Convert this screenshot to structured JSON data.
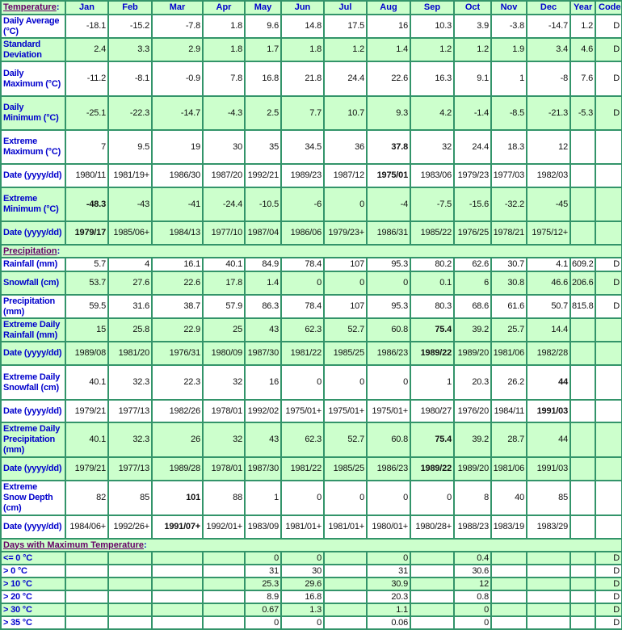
{
  "colors": {
    "label": "#0000cc",
    "section_link": "#660066",
    "row_alt": "#ccffcc",
    "border": "#33946a"
  },
  "columns": [
    "Jan",
    "Feb",
    "Mar",
    "Apr",
    "May",
    "Jun",
    "Jul",
    "Aug",
    "Sep",
    "Oct",
    "Nov",
    "Dec",
    "Year",
    "Code"
  ],
  "sections": [
    {
      "title": "Temperature",
      "is_header": true,
      "rows": [
        {
          "label": "Daily Average (°C)",
          "bg": "w",
          "h": 29,
          "values": [
            "-18.1",
            "-15.2",
            "-7.8",
            "1.8",
            "9.6",
            "14.8",
            "17.5",
            "16",
            "10.3",
            "3.9",
            "-3.8",
            "-14.7",
            "1.2",
            "D"
          ]
        },
        {
          "label": "Standard Deviation",
          "bg": "g",
          "h": 29,
          "values": [
            "2.4",
            "3.3",
            "2.9",
            "1.8",
            "1.7",
            "1.8",
            "1.2",
            "1.4",
            "1.2",
            "1.2",
            "1.9",
            "3.4",
            "4.6",
            "D"
          ]
        },
        {
          "label": "Daily Maximum (°C)",
          "bg": "w",
          "h": 43,
          "values": [
            "-11.2",
            "-8.1",
            "-0.9",
            "7.8",
            "16.8",
            "21.8",
            "24.4",
            "22.6",
            "16.3",
            "9.1",
            "1",
            "-8",
            "7.6",
            "D"
          ]
        },
        {
          "label": "Daily Minimum (°C)",
          "bg": "g",
          "h": 42,
          "values": [
            "-25.1",
            "-22.3",
            "-14.7",
            "-4.3",
            "2.5",
            "7.7",
            "10.7",
            "9.3",
            "4.2",
            "-1.4",
            "-8.5",
            "-21.3",
            "-5.3",
            "D"
          ]
        },
        {
          "label": "Extreme Maximum (°C)",
          "bg": "w",
          "h": 42,
          "values": [
            "7",
            "9.5",
            "19",
            "30",
            "35",
            "34.5",
            "36",
            "37.8",
            "32",
            "24.4",
            "18.3",
            "12",
            "",
            ""
          ],
          "bold": [
            7
          ]
        },
        {
          "label": "Date (yyyy/dd)",
          "bg": "w",
          "h": 29,
          "values": [
            "1980/11",
            "1981/19+",
            "1986/30",
            "1987/20",
            "1992/21",
            "1989/23",
            "1987/12",
            "1975/01",
            "1983/06",
            "1979/23",
            "1977/03",
            "1982/03",
            "",
            ""
          ],
          "bold": [
            7
          ]
        },
        {
          "label": "Extreme Minimum (°C)",
          "bg": "g",
          "h": 42,
          "values": [
            "-48.3",
            "-43",
            "-41",
            "-24.4",
            "-10.5",
            "-6",
            "0",
            "-4",
            "-7.5",
            "-15.6",
            "-32.2",
            "-45",
            "",
            ""
          ],
          "bold": [
            0
          ]
        },
        {
          "label": "Date (yyyy/dd)",
          "bg": "g",
          "h": 29,
          "values": [
            "1979/17",
            "1985/06+",
            "1984/13",
            "1977/10",
            "1987/04",
            "1986/06",
            "1979/23+",
            "1986/31",
            "1985/22",
            "1976/25",
            "1978/21",
            "1975/12+",
            "",
            ""
          ],
          "bold": [
            0
          ]
        }
      ]
    },
    {
      "title": "Precipitation",
      "rows": [
        {
          "label": "Rainfall (mm)",
          "bg": "w",
          "h": 17,
          "values": [
            "5.7",
            "4",
            "16.1",
            "40.1",
            "84.9",
            "78.4",
            "107",
            "95.3",
            "80.2",
            "62.6",
            "30.7",
            "4.1",
            "609.2",
            "D"
          ]
        },
        {
          "label": "Snowfall (cm)",
          "bg": "g",
          "h": 29,
          "values": [
            "53.7",
            "27.6",
            "22.6",
            "17.8",
            "1.4",
            "0",
            "0",
            "0",
            "0.1",
            "6",
            "30.8",
            "46.6",
            "206.6",
            "D"
          ]
        },
        {
          "label": "Precipitation (mm)",
          "bg": "w",
          "h": 29,
          "values": [
            "59.5",
            "31.6",
            "38.7",
            "57.9",
            "86.3",
            "78.4",
            "107",
            "95.3",
            "80.3",
            "68.6",
            "61.6",
            "50.7",
            "815.8",
            "D"
          ]
        },
        {
          "label": "Extreme Daily Rainfall (mm)",
          "bg": "g",
          "h": 29,
          "values": [
            "15",
            "25.8",
            "22.9",
            "25",
            "43",
            "62.3",
            "52.7",
            "60.8",
            "75.4",
            "39.2",
            "25.7",
            "14.4",
            "",
            ""
          ],
          "bold": [
            8
          ]
        },
        {
          "label": "Date (yyyy/dd)",
          "bg": "g",
          "h": 29,
          "values": [
            "1989/08",
            "1981/20",
            "1976/31",
            "1980/09",
            "1987/30",
            "1981/22",
            "1985/25",
            "1986/23",
            "1989/22",
            "1989/20",
            "1981/06",
            "1982/28",
            "",
            ""
          ],
          "bold": [
            8
          ]
        },
        {
          "label": "Extreme Daily Snowfall (cm)",
          "bg": "w",
          "h": 43,
          "values": [
            "40.1",
            "32.3",
            "22.3",
            "32",
            "16",
            "0",
            "0",
            "0",
            "1",
            "20.3",
            "26.2",
            "44",
            "",
            ""
          ],
          "bold": [
            11
          ]
        },
        {
          "label": "Date (yyyy/dd)",
          "bg": "w",
          "h": 28,
          "values": [
            "1979/21",
            "1977/13",
            "1982/26",
            "1978/01",
            "1992/02",
            "1975/01+",
            "1975/01+",
            "1975/01+",
            "1980/27",
            "1976/20",
            "1984/11",
            "1991/03",
            "",
            ""
          ],
          "bold": [
            11
          ]
        },
        {
          "label": "Extreme Daily Precipitation (mm)",
          "bg": "g",
          "h": 43,
          "values": [
            "40.1",
            "32.3",
            "26",
            "32",
            "43",
            "62.3",
            "52.7",
            "60.8",
            "75.4",
            "39.2",
            "28.7",
            "44",
            "",
            ""
          ],
          "bold": [
            8
          ]
        },
        {
          "label": "Date (yyyy/dd)",
          "bg": "g",
          "h": 29,
          "values": [
            "1979/21",
            "1977/13",
            "1989/28",
            "1978/01",
            "1987/30",
            "1981/22",
            "1985/25",
            "1986/23",
            "1989/22",
            "1989/20",
            "1981/06",
            "1991/03",
            "",
            ""
          ],
          "bold": [
            8
          ]
        },
        {
          "label": "Extreme Snow Depth (cm)",
          "bg": "w",
          "h": 43,
          "values": [
            "82",
            "85",
            "101",
            "88",
            "1",
            "0",
            "0",
            "0",
            "0",
            "8",
            "40",
            "85",
            "",
            ""
          ],
          "bold": [
            2
          ]
        },
        {
          "label": "Date (yyyy/dd)",
          "bg": "w",
          "h": 29,
          "values": [
            "1984/06+",
            "1992/26+",
            "1991/07+",
            "1992/01+",
            "1983/09",
            "1981/01+",
            "1981/01+",
            "1980/01+",
            "1980/28+",
            "1988/23",
            "1983/19",
            "1983/29",
            "",
            ""
          ],
          "bold": [
            2
          ]
        }
      ]
    },
    {
      "title": "Days with Maximum Temperature",
      "rows": [
        {
          "label": "<= 0 °C",
          "bg": "g",
          "h": 16,
          "values": [
            "",
            "",
            "",
            "",
            "0",
            "0",
            "",
            "0",
            "",
            "0.4",
            "",
            "",
            "",
            "D"
          ]
        },
        {
          "label": "> 0 °C",
          "bg": "w",
          "h": 16,
          "values": [
            "",
            "",
            "",
            "",
            "31",
            "30",
            "",
            "31",
            "",
            "30.6",
            "",
            "",
            "",
            "D"
          ]
        },
        {
          "label": "> 10 °C",
          "bg": "g",
          "h": 16,
          "values": [
            "",
            "",
            "",
            "",
            "25.3",
            "29.6",
            "",
            "30.9",
            "",
            "12",
            "",
            "",
            "",
            "D"
          ]
        },
        {
          "label": "> 20 °C",
          "bg": "w",
          "h": 16,
          "values": [
            "",
            "",
            "",
            "",
            "8.9",
            "16.8",
            "",
            "20.3",
            "",
            "0.8",
            "",
            "",
            "",
            "D"
          ]
        },
        {
          "label": "> 30 °C",
          "bg": "g",
          "h": 16,
          "values": [
            "",
            "",
            "",
            "",
            "0.67",
            "1.3",
            "",
            "1.1",
            "",
            "0",
            "",
            "",
            "",
            "D"
          ]
        },
        {
          "label": "> 35 °C",
          "bg": "w",
          "h": 16,
          "values": [
            "",
            "",
            "",
            "",
            "0",
            "0",
            "",
            "0.06",
            "",
            "0",
            "",
            "",
            "",
            "D"
          ]
        }
      ]
    }
  ]
}
